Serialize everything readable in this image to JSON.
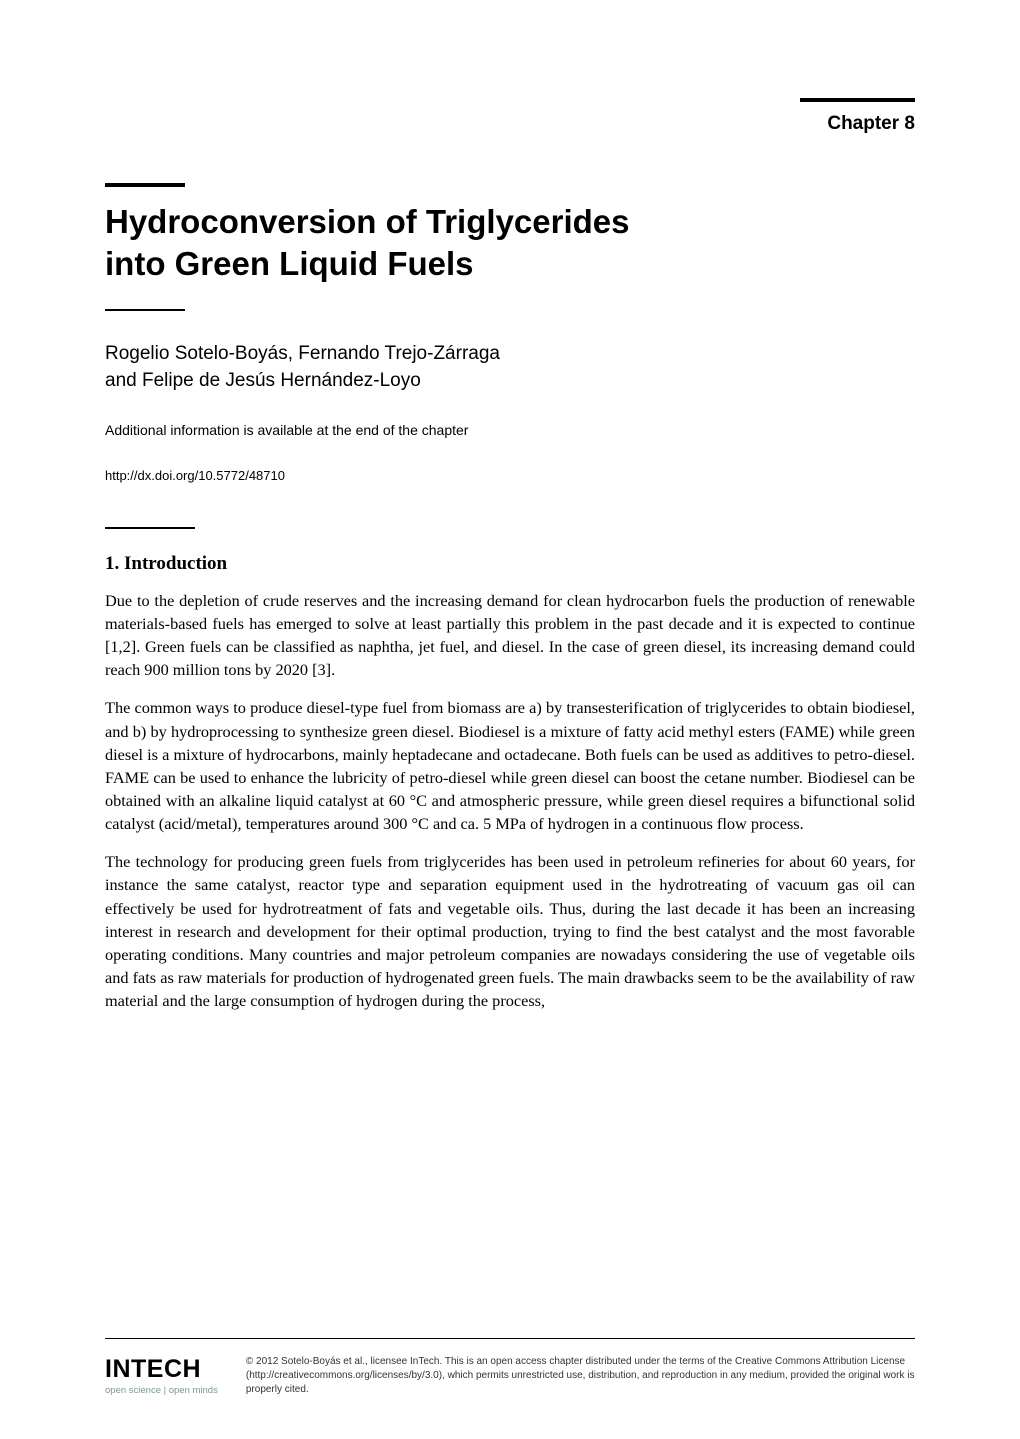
{
  "chapter_label": "Chapter 8",
  "title_line1": "Hydroconversion of Triglycerides",
  "title_line2": "into Green Liquid Fuels",
  "authors_line1": "Rogelio Sotelo-Boyás, Fernando Trejo-Zárraga",
  "authors_line2": "and Felipe de Jesús Hernández-Loyo",
  "additional_info": "Additional information is available at the end of the chapter",
  "doi": "http://dx.doi.org/10.5772/48710",
  "section_heading": "1. Introduction",
  "para1": "Due to the depletion of crude reserves and the increasing demand for clean hydrocarbon fuels the production of renewable materials-based fuels has emerged to solve at least partially this problem in the past decade and it is expected to continue [1,2]. Green fuels can be classified as naphtha, jet fuel, and diesel. In the case of green diesel, its increasing demand could reach 900 million tons by 2020 [3].",
  "para2": "The common ways to produce diesel-type fuel from biomass are a) by transesterification of triglycerides to obtain biodiesel, and b) by hydroprocessing to synthesize green diesel. Biodiesel is a mixture of fatty acid methyl esters (FAME) while green diesel is a mixture of hydrocarbons, mainly heptadecane and octadecane. Both fuels can be used as additives to petro-diesel. FAME can be used to enhance the lubricity of petro-diesel while green diesel can boost the cetane number. Biodiesel can be obtained with an alkaline liquid catalyst at 60 °C and atmospheric pressure, while green diesel requires a bifunctional solid catalyst (acid/metal), temperatures around 300 °C and ca. 5 MPa of hydrogen in a continuous flow process.",
  "para3": "The technology for producing green fuels from triglycerides has been used in petroleum refineries for about 60 years, for instance the same catalyst, reactor type and separation equipment used in the hydrotreating of vacuum gas oil can effectively be used for hydrotreatment of fats and vegetable oils. Thus, during the last decade it has been an increasing interest in research and development for their optimal production, trying to find the best catalyst and the most favorable operating conditions. Many countries and major petroleum companies are nowadays considering the use of vegetable oils and fats as raw materials for production of hydrogenated green fuels. The main drawbacks seem to be the availability of raw material and the large consumption of hydrogen during the process,",
  "logo_name": "INTECH",
  "logo_tagline": "open science | open minds",
  "copyright": "© 2012 Sotelo-Boyás et al., licensee InTech. This is an open access chapter distributed under the terms of the Creative Commons Attribution License (http://creativecommons.org/licenses/by/3.0), which permits unrestricted use, distribution, and reproduction in any medium, provided the original work is properly cited."
}
